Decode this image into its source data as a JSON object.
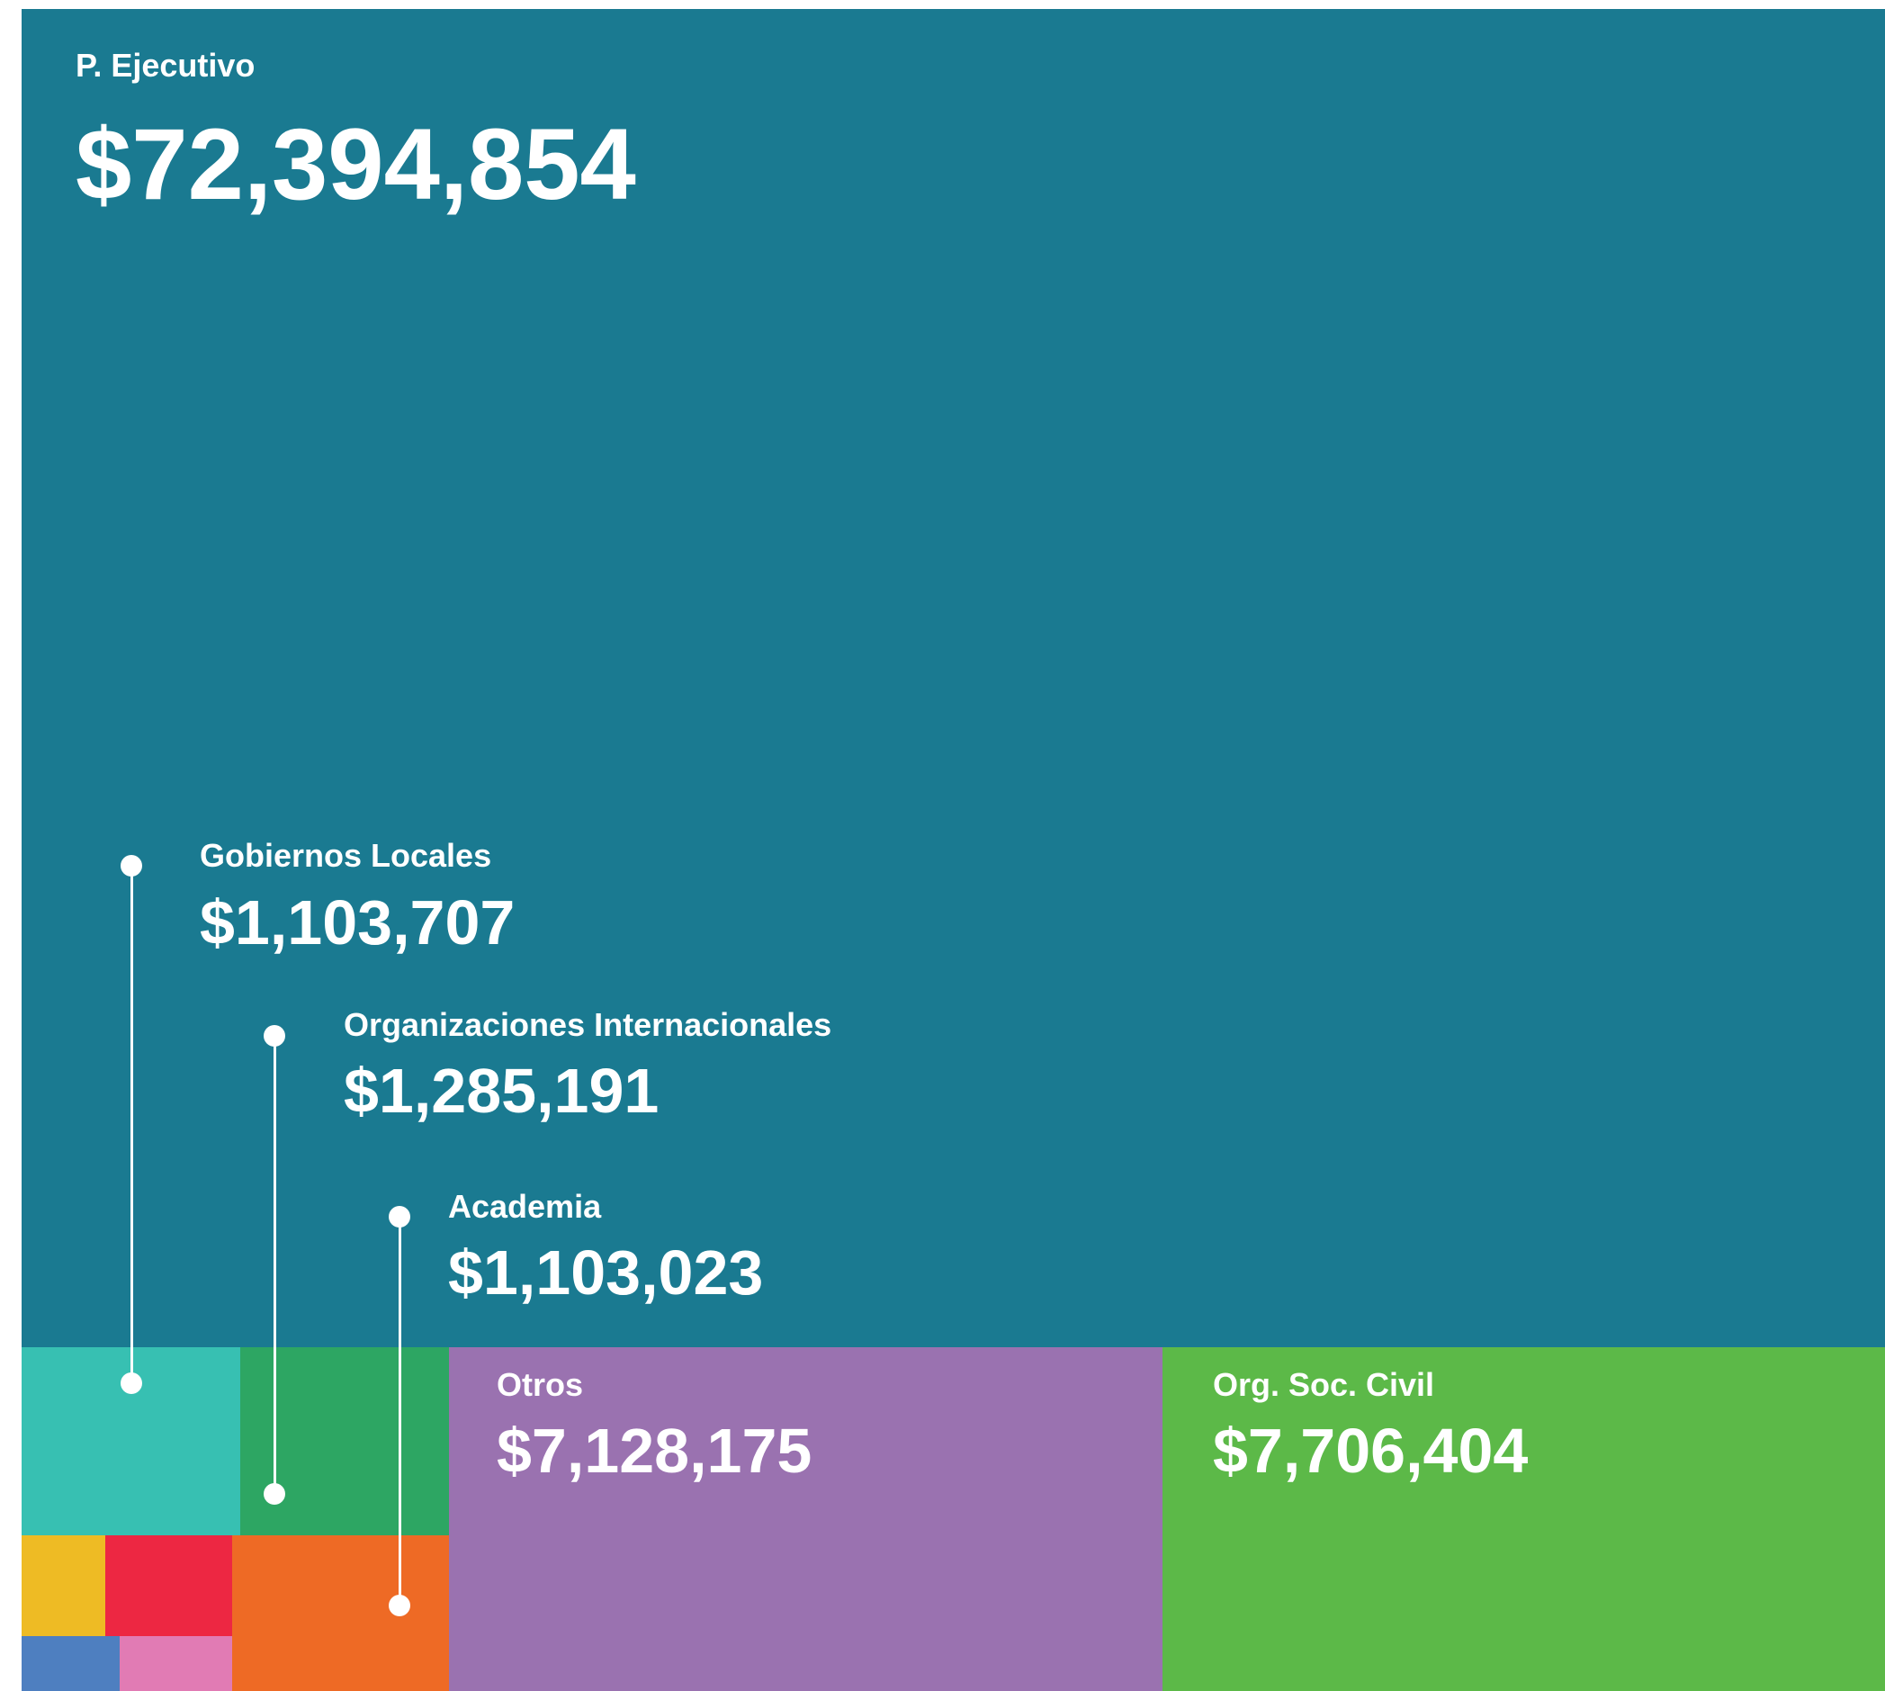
{
  "chart_data": {
    "type": "treemap",
    "title": "",
    "items": [
      {
        "name": "P. Ejecutivo",
        "value_label": "$72,394,854",
        "value": 72394854,
        "color": "#1a7a91"
      },
      {
        "name": "Org. Soc. Civil",
        "value_label": "$7,706,404",
        "value": 7706404,
        "color": "#5cb948"
      },
      {
        "name": "Otros",
        "value_label": "$7,128,175",
        "value": 7128175,
        "color": "#9a72b0"
      },
      {
        "name": "Organizaciones Internacionales",
        "value_label": "$1,285,191",
        "value": 1285191,
        "color": "#2da663"
      },
      {
        "name": "Gobiernos Locales",
        "value_label": "$1,103,707",
        "value": 1103707,
        "color": "#37c0b2"
      },
      {
        "name": "Academia",
        "value_label": "$1,103,023",
        "value": 1103023,
        "color": "#ee6a25"
      },
      {
        "name": "",
        "value_label": "",
        "color": "#ed2742"
      },
      {
        "name": "",
        "value_label": "",
        "color": "#eebb24"
      },
      {
        "name": "",
        "value_label": "",
        "color": "#e17bb4"
      },
      {
        "name": "",
        "value_label": "",
        "color": "#4e7fc0"
      }
    ]
  }
}
